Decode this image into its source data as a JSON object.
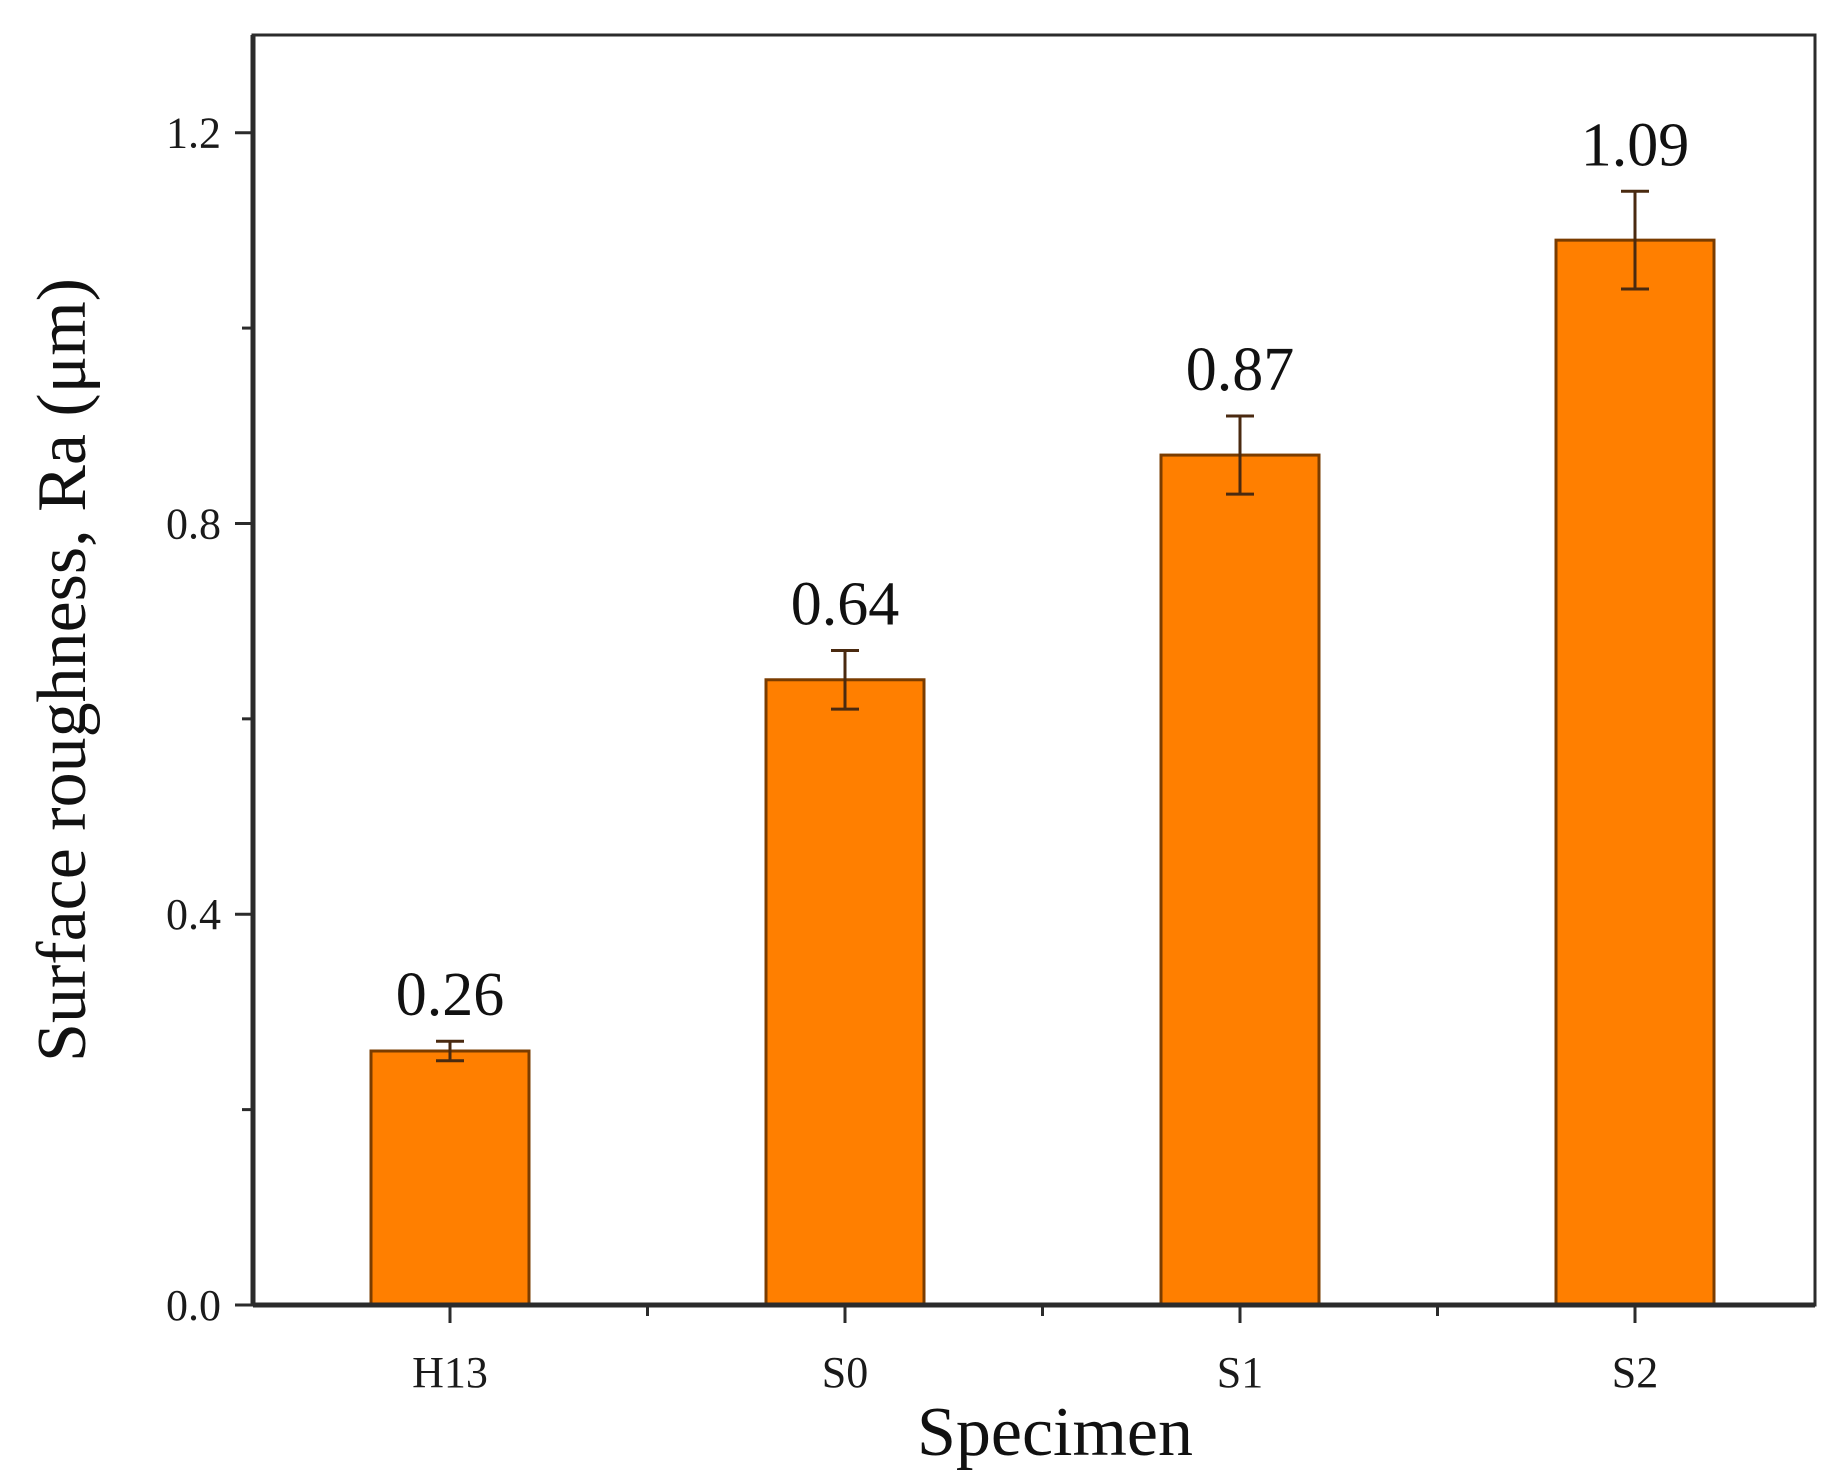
{
  "colors": {
    "bar_fill": "#ff7f00",
    "bar_stroke": "#7a3c00",
    "axis": "#2b2b2b",
    "error_bar": "#4a2a10"
  },
  "chart_data": {
    "type": "bar",
    "title": "",
    "xlabel": "Specimen",
    "ylabel": "Surface roughness, Ra (μm)",
    "categories": [
      "H13",
      "S0",
      "S1",
      "S2"
    ],
    "values": [
      0.26,
      0.64,
      0.87,
      1.09
    ],
    "errors": [
      0.01,
      0.03,
      0.04,
      0.05
    ],
    "data_labels": [
      "0.26",
      "0.64",
      "0.87",
      "1.09"
    ],
    "ylim": [
      0,
      1.3
    ],
    "yticks": [
      0.0,
      0.4,
      0.8,
      1.2
    ],
    "ytick_labels": [
      "0.0",
      "0.4",
      "0.8",
      "1.2"
    ],
    "grid": false,
    "legend": "none"
  }
}
